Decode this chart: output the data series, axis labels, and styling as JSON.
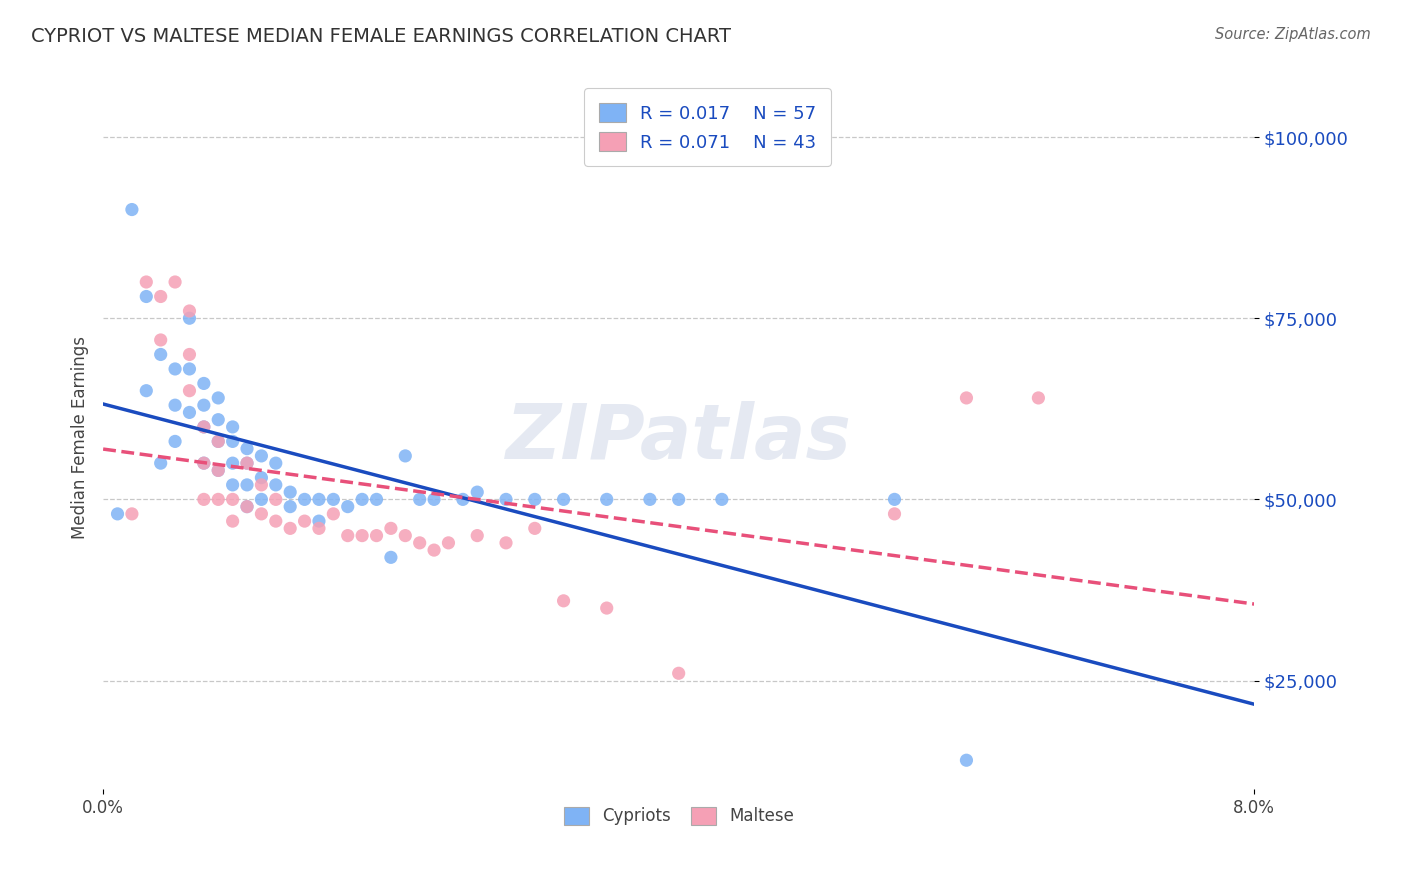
{
  "title": "CYPRIOT VS MALTESE MEDIAN FEMALE EARNINGS CORRELATION CHART",
  "source": "Source: ZipAtlas.com",
  "ylabel": "Median Female Earnings",
  "yticks": [
    25000,
    50000,
    75000,
    100000
  ],
  "ytick_labels": [
    "$25,000",
    "$50,000",
    "$75,000",
    "$100,000"
  ],
  "xlim": [
    0.0,
    0.08
  ],
  "ylim": [
    10000,
    107000
  ],
  "cypriot_R": 0.017,
  "cypriot_N": 57,
  "maltese_R": 0.071,
  "maltese_N": 43,
  "cypriot_color": "#7fb3f5",
  "maltese_color": "#f5a0b5",
  "cypriot_line_color": "#1a4bbf",
  "maltese_line_color": "#e8507a",
  "watermark": "ZIPatlas",
  "background_color": "#ffffff",
  "grid_color": "#c8c8c8",
  "cypriot_x": [
    0.001,
    0.002,
    0.003,
    0.003,
    0.004,
    0.004,
    0.005,
    0.005,
    0.005,
    0.006,
    0.006,
    0.006,
    0.007,
    0.007,
    0.007,
    0.007,
    0.008,
    0.008,
    0.008,
    0.008,
    0.009,
    0.009,
    0.009,
    0.009,
    0.01,
    0.01,
    0.01,
    0.01,
    0.011,
    0.011,
    0.011,
    0.012,
    0.012,
    0.013,
    0.013,
    0.014,
    0.015,
    0.015,
    0.016,
    0.017,
    0.018,
    0.019,
    0.02,
    0.021,
    0.022,
    0.023,
    0.025,
    0.026,
    0.028,
    0.03,
    0.032,
    0.035,
    0.038,
    0.04,
    0.043,
    0.055,
    0.06
  ],
  "cypriot_y": [
    48000,
    90000,
    78000,
    65000,
    70000,
    55000,
    68000,
    63000,
    58000,
    75000,
    68000,
    62000,
    66000,
    63000,
    60000,
    55000,
    64000,
    61000,
    58000,
    54000,
    60000,
    58000,
    55000,
    52000,
    57000,
    55000,
    52000,
    49000,
    56000,
    53000,
    50000,
    55000,
    52000,
    51000,
    49000,
    50000,
    50000,
    47000,
    50000,
    49000,
    50000,
    50000,
    42000,
    56000,
    50000,
    50000,
    50000,
    51000,
    50000,
    50000,
    50000,
    50000,
    50000,
    50000,
    50000,
    50000,
    14000
  ],
  "maltese_x": [
    0.002,
    0.003,
    0.004,
    0.004,
    0.005,
    0.006,
    0.006,
    0.006,
    0.007,
    0.007,
    0.007,
    0.008,
    0.008,
    0.008,
    0.009,
    0.009,
    0.01,
    0.01,
    0.011,
    0.011,
    0.012,
    0.012,
    0.013,
    0.014,
    0.015,
    0.016,
    0.017,
    0.018,
    0.019,
    0.02,
    0.021,
    0.022,
    0.023,
    0.024,
    0.026,
    0.028,
    0.03,
    0.032,
    0.035,
    0.04,
    0.055,
    0.06,
    0.065
  ],
  "maltese_y": [
    48000,
    80000,
    78000,
    72000,
    80000,
    76000,
    70000,
    65000,
    60000,
    55000,
    50000,
    58000,
    54000,
    50000,
    50000,
    47000,
    55000,
    49000,
    52000,
    48000,
    50000,
    47000,
    46000,
    47000,
    46000,
    48000,
    45000,
    45000,
    45000,
    46000,
    45000,
    44000,
    43000,
    44000,
    45000,
    44000,
    46000,
    36000,
    35000,
    26000,
    48000,
    64000,
    64000
  ]
}
